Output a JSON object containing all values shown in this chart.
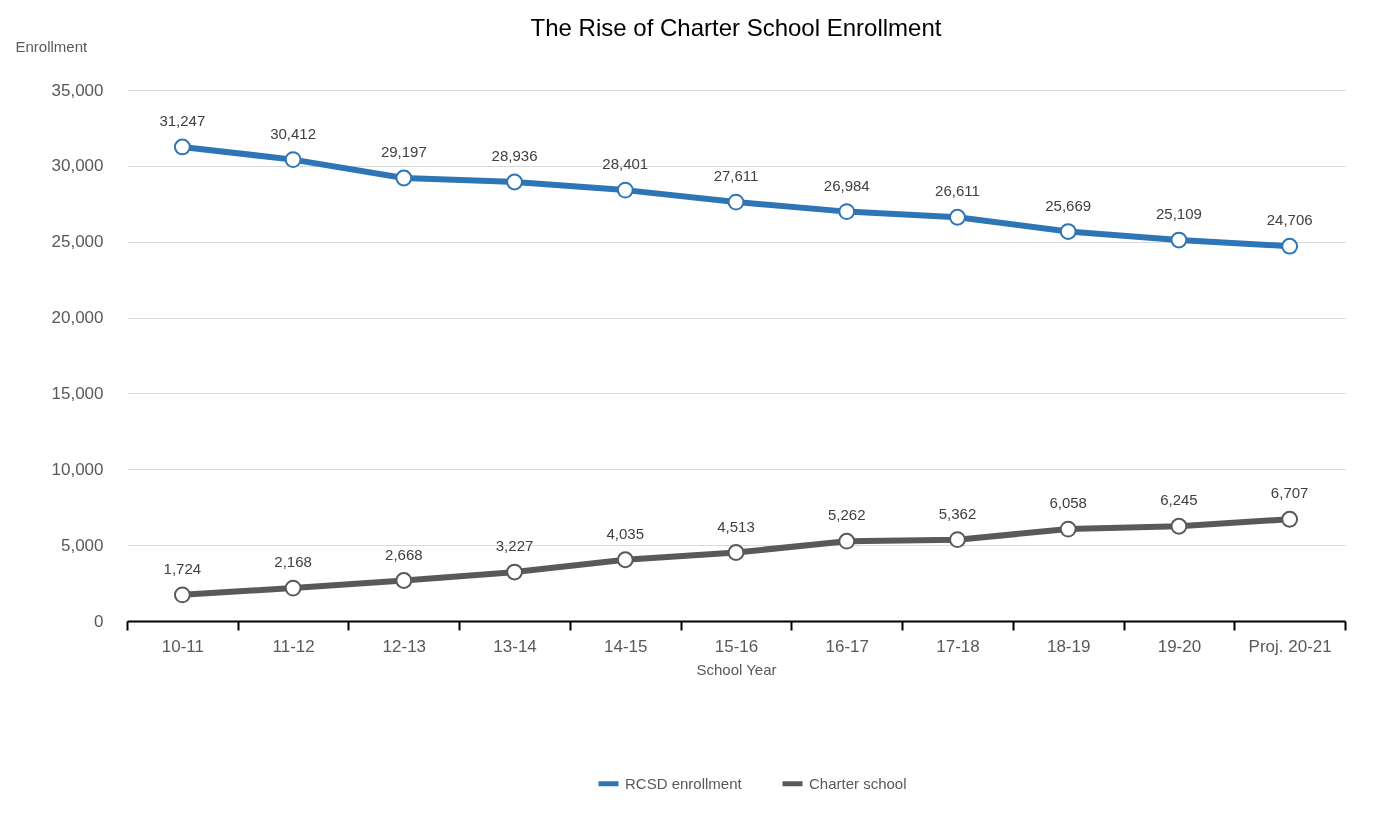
{
  "chart_data": {
    "type": "line",
    "title": "The Rise of Charter School Enrollment",
    "xlabel": "School Year",
    "ylabel": "Enrollment",
    "categories": [
      "10-11",
      "11-12",
      "12-13",
      "13-14",
      "14-15",
      "15-16",
      "16-17",
      "17-18",
      "18-19",
      "19-20",
      "Proj. 20-21"
    ],
    "series": [
      {
        "name": "RCSD enrollment",
        "color": "#2e75b6",
        "values": [
          31247,
          30412,
          29197,
          28936,
          28401,
          27611,
          26984,
          26611,
          25669,
          25109,
          24706
        ],
        "value_labels": [
          "31,247",
          "30,412",
          "29,197",
          "28,936",
          "28,401",
          "27,611",
          "26,984",
          "26,611",
          "25,669",
          "25,109",
          "24,706"
        ]
      },
      {
        "name": "Charter school",
        "color": "#595959",
        "values": [
          1724,
          2168,
          2668,
          3227,
          4035,
          4513,
          5262,
          5362,
          6058,
          6245,
          6707
        ],
        "value_labels": [
          "1,724",
          "2,168",
          "2,668",
          "3,227",
          "4,035",
          "4,513",
          "5,262",
          "5,362",
          "6,058",
          "6,245",
          "6,707"
        ]
      }
    ],
    "ylim": [
      0,
      35000
    ],
    "yticks": [
      0,
      {
        "value": 5000,
        "label": "5,000"
      },
      {
        "value": 10000,
        "label": "10,000"
      },
      {
        "value": 15000,
        "label": "15,000"
      },
      {
        "value": 20000,
        "label": "20,000"
      },
      {
        "value": 25000,
        "label": "25,000"
      },
      {
        "value": 30000,
        "label": "30,000"
      },
      {
        "value": 35000,
        "label": "35,000"
      }
    ],
    "grid": "y",
    "legend": "bottom",
    "marker": "circle",
    "line_style": "solid"
  }
}
